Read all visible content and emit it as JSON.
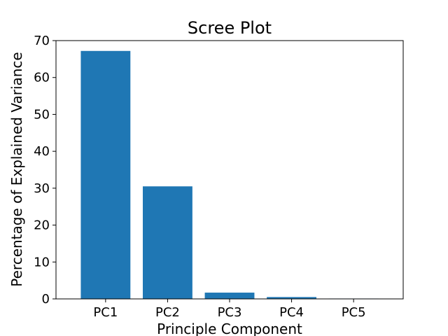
{
  "chart_data": {
    "type": "bar",
    "title": "Scree Plot",
    "xlabel": "Principle Component",
    "ylabel": "Percentage of Explained Variance",
    "categories": [
      "PC1",
      "PC2",
      "PC3",
      "PC4",
      "PC5"
    ],
    "values": [
      67.2,
      30.5,
      1.7,
      0.5,
      0.1
    ],
    "ylim": [
      0,
      70
    ],
    "yticks": [
      0,
      10,
      20,
      30,
      40,
      50,
      60,
      70
    ],
    "bar_color": "#1f77b4",
    "grid": false,
    "legend": "none"
  }
}
